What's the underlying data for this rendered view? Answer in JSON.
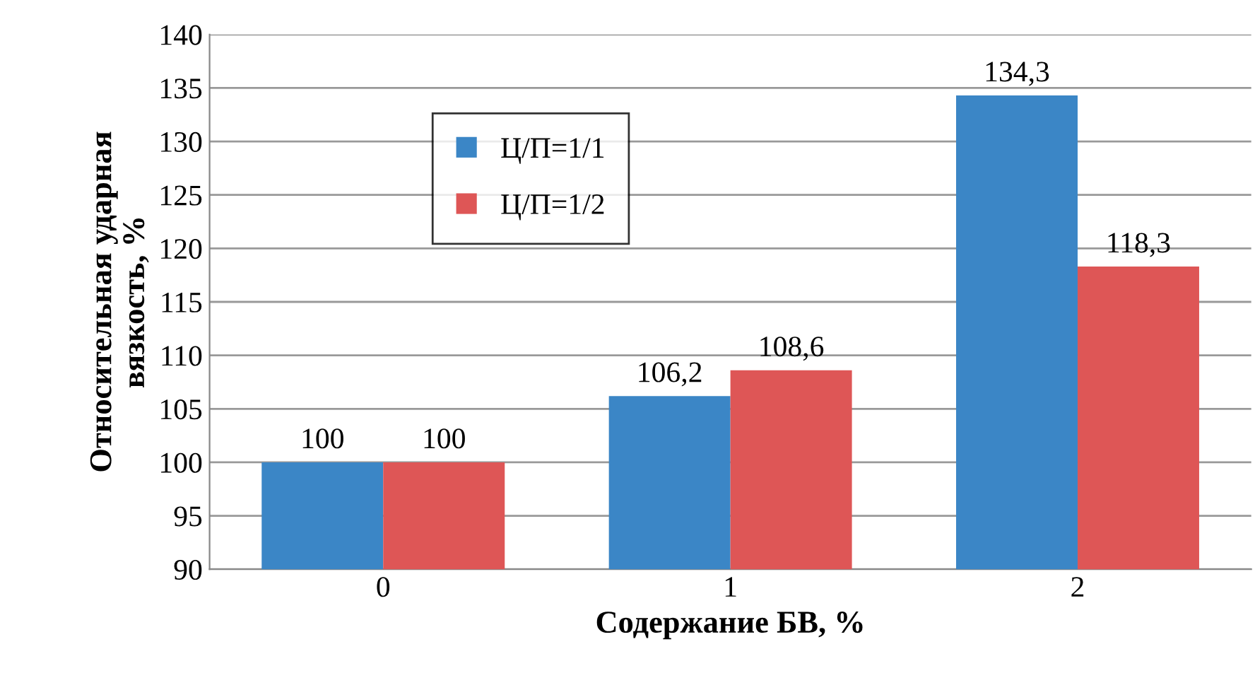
{
  "chart_data": {
    "type": "bar",
    "xlabel": "Содержание БВ, %",
    "ylabel": "Относительная ударная\nвязкость, %",
    "categories": [
      "0",
      "1",
      "2"
    ],
    "series": [
      {
        "name": "Ц/П=1/1",
        "color": "#3b86c6",
        "values": [
          100,
          106.2,
          134.3
        ],
        "value_labels": [
          "100",
          "106,2",
          "134,3"
        ]
      },
      {
        "name": "Ц/П=1/2",
        "color": "#de5656",
        "values": [
          100,
          108.6,
          118.3
        ],
        "value_labels": [
          "100",
          "108,6",
          "118,3"
        ]
      }
    ],
    "ylim": [
      90,
      140
    ],
    "yticks": [
      90,
      95,
      100,
      105,
      110,
      115,
      120,
      125,
      130,
      135,
      140
    ],
    "grid": "y",
    "legend": "top left"
  }
}
